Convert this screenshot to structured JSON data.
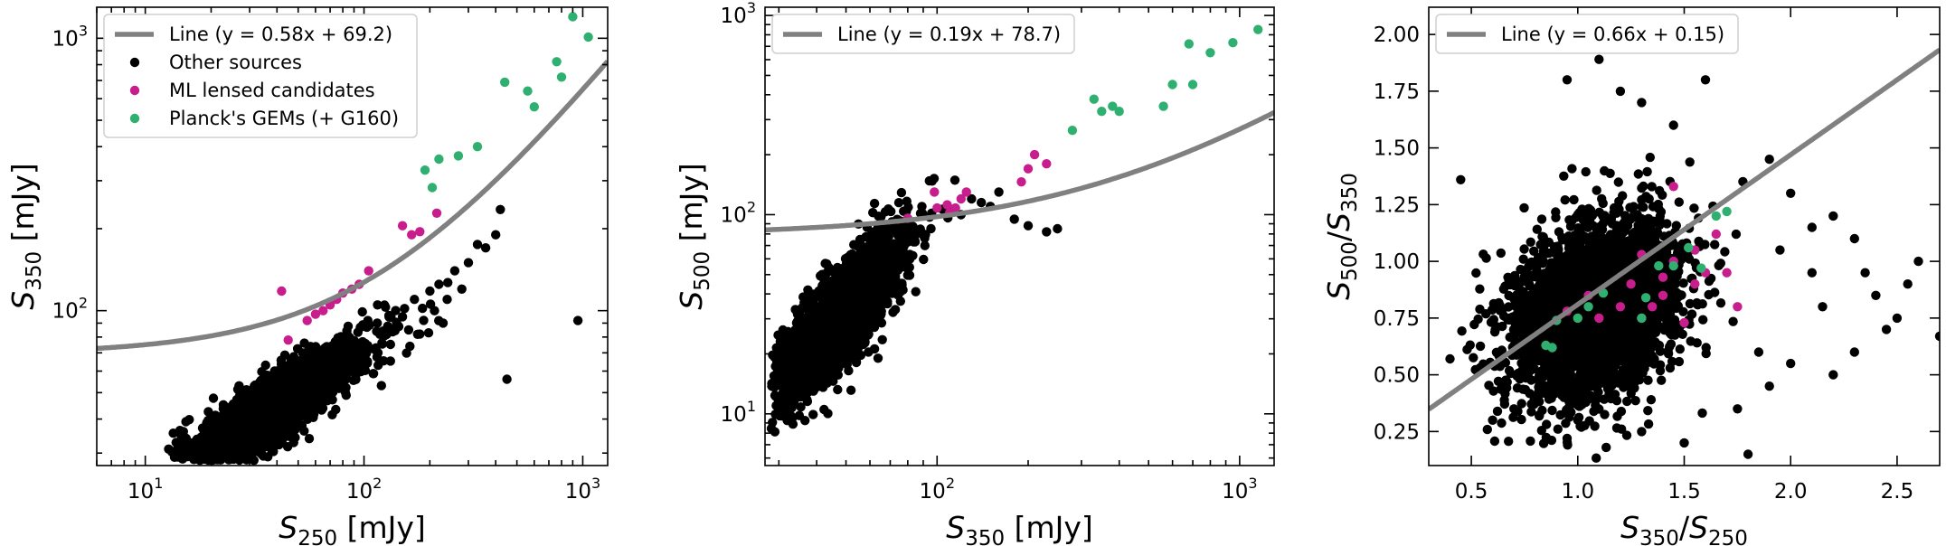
{
  "chart_data": [
    {
      "type": "scatter",
      "xscale": "log",
      "yscale": "log",
      "xlim": [
        6,
        1300
      ],
      "ylim": [
        27,
        1300
      ],
      "xticks": [
        {
          "v": 10,
          "t": "10",
          "e": "1"
        },
        {
          "v": 100,
          "t": "10",
          "e": "2"
        },
        {
          "v": 1000,
          "t": "10",
          "e": "3"
        }
      ],
      "yticks": [
        {
          "v": 100,
          "t": "10",
          "e": "2"
        },
        {
          "v": 1000,
          "t": "10",
          "e": "3"
        }
      ],
      "xlabel": {
        "main": "S",
        "sub": "250",
        "unit": " [mJy]"
      },
      "ylabel": {
        "main": "S",
        "sub": "350",
        "unit": " [mJy]"
      },
      "line": {
        "label": "Line (y = 0.58x + 69.2)",
        "slope": 0.58,
        "intercept": 69.2,
        "color": "#808080"
      },
      "legend_position": "top-left",
      "series": [
        {
          "name": "Other sources",
          "color": "#000000",
          "cloud": {
            "xcenter": 1.55,
            "xspread": 0.22,
            "ycenter": 1.62,
            "yspread": 0.13,
            "corr": 0.9,
            "n": 3000,
            "xmin": 0.8,
            "ymin": 1.45
          },
          "points": [
            [
              950,
              92
            ],
            [
              450,
              56
            ],
            [
              420,
              235
            ],
            [
              400,
              190
            ],
            [
              360,
              170
            ],
            [
              330,
              175
            ],
            [
              300,
              150
            ],
            [
              280,
              120
            ],
            [
              260,
              140
            ],
            [
              240,
              110
            ],
            [
              220,
              125
            ],
            [
              200,
              118
            ],
            [
              185,
              102
            ],
            [
              170,
              110
            ],
            [
              150,
              95
            ],
            [
              130,
              96
            ],
            [
              115,
              90
            ],
            [
              230,
              90
            ],
            [
              210,
              100
            ],
            [
              180,
              82
            ],
            [
              160,
              85
            ]
          ]
        },
        {
          "name": "ML lensed candidates",
          "color": "#c81d8c",
          "points": [
            [
              42,
              118
            ],
            [
              45,
              78
            ],
            [
              55,
              92
            ],
            [
              60,
              97
            ],
            [
              65,
              100
            ],
            [
              70,
              105
            ],
            [
              75,
              110
            ],
            [
              80,
              116
            ],
            [
              88,
              120
            ],
            [
              95,
              125
            ],
            [
              105,
              140
            ],
            [
              150,
              205
            ],
            [
              165,
              190
            ],
            [
              180,
              195
            ],
            [
              215,
              228
            ]
          ]
        },
        {
          "name": "Planck's GEMs (+ G160)",
          "color": "#2fb070",
          "points": [
            [
              190,
              328
            ],
            [
              205,
              283
            ],
            [
              220,
              360
            ],
            [
              270,
              370
            ],
            [
              330,
              400
            ],
            [
              440,
              690
            ],
            [
              560,
              640
            ],
            [
              600,
              560
            ],
            [
              760,
              820
            ],
            [
              800,
              720
            ],
            [
              900,
              1200
            ],
            [
              1060,
              1010
            ]
          ]
        }
      ]
    },
    {
      "type": "scatter",
      "xscale": "log",
      "yscale": "log",
      "xlim": [
        27,
        1300
      ],
      "ylim": [
        5.5,
        1100
      ],
      "xticks": [
        {
          "v": 100,
          "t": "10",
          "e": "2"
        },
        {
          "v": 1000,
          "t": "10",
          "e": "3"
        }
      ],
      "yticks": [
        {
          "v": 10,
          "t": "10",
          "e": "1"
        },
        {
          "v": 100,
          "t": "10",
          "e": "2"
        },
        {
          "v": 1000,
          "t": "10",
          "e": "3"
        }
      ],
      "xlabel": {
        "main": "S",
        "sub": "350",
        "unit": " [mJy]"
      },
      "ylabel": {
        "main": "S",
        "sub": "500",
        "unit": " [mJy]"
      },
      "line": {
        "label": "Line (y = 0.19x + 78.7)",
        "slope": 0.19,
        "intercept": 78.7,
        "color": "#808080"
      },
      "legend_position": "top-left",
      "series": [
        {
          "name": "Other sources",
          "color": "#000000",
          "cloud": {
            "xcenter": 1.68,
            "xspread": 0.1,
            "ycenter": 1.48,
            "yspread": 0.2,
            "corr": 0.82,
            "n": 3000,
            "xmin": 1.45,
            "ymin": 0.8
          },
          "points": [
            [
              140,
              115
            ],
            [
              150,
              110
            ],
            [
              180,
              95
            ],
            [
              200,
              88
            ],
            [
              230,
              82
            ],
            [
              250,
              85
            ],
            [
              160,
              130
            ],
            [
              130,
              120
            ],
            [
              120,
              100
            ]
          ]
        },
        {
          "name": "ML lensed candidates",
          "color": "#c81d8c",
          "points": [
            [
              80,
              96
            ],
            [
              98,
              130
            ],
            [
              100,
              108
            ],
            [
              108,
              112
            ],
            [
              110,
              102
            ],
            [
              115,
              108
            ],
            [
              120,
              120
            ],
            [
              125,
              130
            ],
            [
              190,
              146
            ],
            [
              200,
              170
            ],
            [
              210,
              200
            ],
            [
              230,
              180
            ]
          ]
        },
        {
          "name": "Planck's GEMs (+ G160)",
          "color": "#2fb070",
          "points": [
            [
              280,
              265
            ],
            [
              330,
              380
            ],
            [
              350,
              330
            ],
            [
              380,
              350
            ],
            [
              400,
              330
            ],
            [
              560,
              350
            ],
            [
              600,
              450
            ],
            [
              680,
              720
            ],
            [
              700,
              450
            ],
            [
              800,
              650
            ],
            [
              950,
              730
            ],
            [
              1150,
              850
            ]
          ]
        }
      ]
    },
    {
      "type": "scatter",
      "xscale": "linear",
      "yscale": "linear",
      "xlim": [
        0.3,
        2.7
      ],
      "ylim": [
        0.1,
        2.12
      ],
      "xticks": [
        {
          "v": 0.5,
          "t": "0.5"
        },
        {
          "v": 1.0,
          "t": "1.0"
        },
        {
          "v": 1.5,
          "t": "1.5"
        },
        {
          "v": 2.0,
          "t": "2.0"
        },
        {
          "v": 2.5,
          "t": "2.5"
        }
      ],
      "yticks": [
        {
          "v": 0.25,
          "t": "0.25"
        },
        {
          "v": 0.5,
          "t": "0.50"
        },
        {
          "v": 0.75,
          "t": "0.75"
        },
        {
          "v": 1.0,
          "t": "1.00"
        },
        {
          "v": 1.25,
          "t": "1.25"
        },
        {
          "v": 1.5,
          "t": "1.50"
        },
        {
          "v": 1.75,
          "t": "1.75"
        },
        {
          "v": 2.0,
          "t": "2.00"
        }
      ],
      "xlabel": {
        "main": "S",
        "sub": "350",
        "mid": "/",
        "main2": "S",
        "sub2": "250",
        "unit": ""
      },
      "ylabel": {
        "main": "S",
        "sub": "500",
        "mid": "/",
        "main2": "S",
        "sub2": "350",
        "unit": ""
      },
      "line": {
        "label": "Line (y = 0.66x + 0.15)",
        "slope": 0.66,
        "intercept": 0.15,
        "color": "#808080"
      },
      "legend_position": "top-left",
      "series": [
        {
          "name": "Other sources",
          "color": "#000000",
          "cloud": {
            "xcenter": 1.08,
            "xspread": 0.2,
            "ycenter": 0.78,
            "yspread": 0.2,
            "corr": 0.3,
            "n": 3000,
            "xmin": 0.35,
            "ymin": 0.12
          },
          "points": [
            [
              0.45,
              1.36
            ],
            [
              0.4,
              0.57
            ],
            [
              1.1,
              1.89
            ],
            [
              0.95,
              1.8
            ],
            [
              1.2,
              1.75
            ],
            [
              1.3,
              1.7
            ],
            [
              1.6,
              1.8
            ],
            [
              1.45,
              1.6
            ],
            [
              1.9,
              1.45
            ],
            [
              2.0,
              1.3
            ],
            [
              2.2,
              1.2
            ],
            [
              2.1,
              0.95
            ],
            [
              2.3,
              1.1
            ],
            [
              2.4,
              0.85
            ],
            [
              2.5,
              0.75
            ],
            [
              2.6,
              1.0
            ],
            [
              2.55,
              0.9
            ],
            [
              2.45,
              0.7
            ],
            [
              2.7,
              0.67
            ],
            [
              2.3,
              0.6
            ],
            [
              2.2,
              0.5
            ],
            [
              2.0,
              0.55
            ],
            [
              1.9,
              0.45
            ],
            [
              1.75,
              0.35
            ],
            [
              1.8,
              0.15
            ],
            [
              1.5,
              0.2
            ],
            [
              1.3,
              0.25
            ],
            [
              0.95,
              0.22
            ],
            [
              1.0,
              0.3
            ],
            [
              0.7,
              0.35
            ],
            [
              0.6,
              0.3
            ],
            [
              2.1,
              1.15
            ],
            [
              1.95,
              1.05
            ],
            [
              2.15,
              0.8
            ],
            [
              2.35,
              0.95
            ],
            [
              1.85,
              0.6
            ]
          ]
        },
        {
          "name": "ML lensed candidates",
          "color": "#c81d8c",
          "points": [
            [
              0.95,
              0.78
            ],
            [
              1.05,
              0.85
            ],
            [
              1.1,
              0.75
            ],
            [
              1.2,
              0.8
            ],
            [
              1.25,
              0.9
            ],
            [
              1.3,
              1.03
            ],
            [
              1.35,
              0.8
            ],
            [
              1.4,
              0.93
            ],
            [
              1.45,
              1.0
            ],
            [
              1.45,
              1.33
            ],
            [
              1.5,
              0.73
            ],
            [
              1.55,
              1.05
            ],
            [
              1.55,
              0.9
            ],
            [
              1.6,
              0.95
            ],
            [
              1.65,
              1.12
            ],
            [
              1.7,
              0.95
            ],
            [
              1.75,
              0.8
            ],
            [
              1.3,
              0.75
            ],
            [
              1.4,
              0.85
            ]
          ]
        },
        {
          "name": "Planck's GEMs (+ G160)",
          "color": "#2fb070",
          "points": [
            [
              0.85,
              0.63
            ],
            [
              0.88,
              0.62
            ],
            [
              0.9,
              0.74
            ],
            [
              1.0,
              0.75
            ],
            [
              1.05,
              0.8
            ],
            [
              1.12,
              0.86
            ],
            [
              1.3,
              0.75
            ],
            [
              1.32,
              0.84
            ],
            [
              1.38,
              0.98
            ],
            [
              1.45,
              0.98
            ],
            [
              1.52,
              1.06
            ],
            [
              1.58,
              0.97
            ],
            [
              1.65,
              1.2
            ],
            [
              1.7,
              1.22
            ]
          ]
        }
      ]
    }
  ]
}
